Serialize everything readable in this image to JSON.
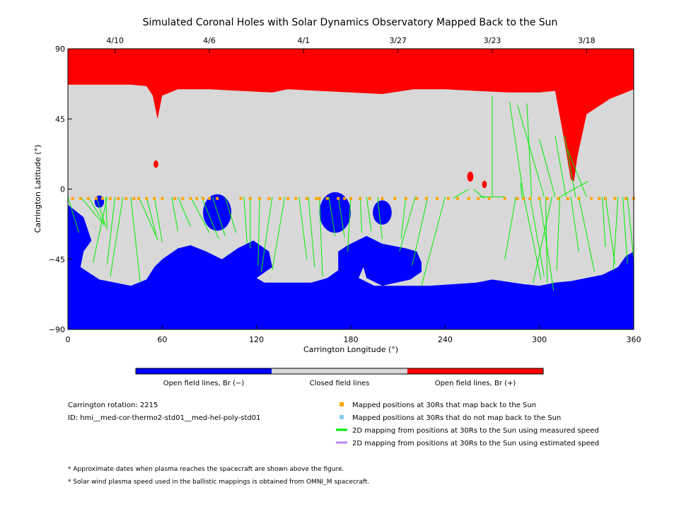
{
  "chart_data": {
    "type": "map",
    "title": "Simulated Coronal Holes with Solar Dynamics Observatory Mapped Back to the Sun",
    "xlabel": "Carrington Longitude (°)",
    "ylabel": "Carrington Latitude (°)",
    "xlim": [
      0,
      360
    ],
    "ylim": [
      -90,
      90
    ],
    "x_ticks": [
      0,
      60,
      120,
      180,
      240,
      300,
      360
    ],
    "y_ticks": [
      {
        "value": 90,
        "label": "90"
      },
      {
        "value": 45,
        "label": "45"
      },
      {
        "value": 0,
        "label": "0"
      },
      {
        "value": -45,
        "label": "−45"
      },
      {
        "value": -90,
        "label": "−90"
      }
    ],
    "top_date_ticks": [
      {
        "lon": 30,
        "label": "4/10"
      },
      {
        "lon": 90,
        "label": "4/6"
      },
      {
        "lon": 150,
        "label": "4/1"
      },
      {
        "lon": 210,
        "label": "3/27"
      },
      {
        "lon": 270,
        "label": "3/23"
      },
      {
        "lon": 330,
        "label": "3/18"
      }
    ],
    "colors": {
      "open_negative": "#0000ff",
      "closed": "#d8d8d8",
      "open_positive": "#ff0000",
      "mapped_point": "#ffa500",
      "unmapped_point": "#87ceeb",
      "measured_speed_line": "#00ee00",
      "estimated_speed_line": "#bb88ee"
    },
    "regions": {
      "positive_boundary": [
        [
          0,
          67
        ],
        [
          20,
          67
        ],
        [
          40,
          67
        ],
        [
          50,
          66
        ],
        [
          54,
          60
        ],
        [
          57,
          45
        ],
        [
          60,
          60
        ],
        [
          70,
          64
        ],
        [
          90,
          64
        ],
        [
          110,
          63
        ],
        [
          130,
          62
        ],
        [
          140,
          64
        ],
        [
          160,
          63
        ],
        [
          180,
          62
        ],
        [
          200,
          61
        ],
        [
          220,
          64
        ],
        [
          240,
          64
        ],
        [
          260,
          63
        ],
        [
          280,
          62
        ],
        [
          300,
          62
        ],
        [
          310,
          63
        ],
        [
          312,
          52
        ],
        [
          316,
          30
        ],
        [
          320,
          6
        ],
        [
          322,
          5
        ],
        [
          324,
          20
        ],
        [
          330,
          48
        ],
        [
          345,
          58
        ],
        [
          360,
          64
        ]
      ],
      "negative_boundary": [
        [
          0,
          -10
        ],
        [
          10,
          -18
        ],
        [
          15,
          -33
        ],
        [
          10,
          -40
        ],
        [
          8,
          -50
        ],
        [
          20,
          -58
        ],
        [
          30,
          -60
        ],
        [
          40,
          -62
        ],
        [
          50,
          -58
        ],
        [
          55,
          -50
        ],
        [
          60,
          -45
        ],
        [
          70,
          -38
        ],
        [
          78,
          -36
        ],
        [
          88,
          -40
        ],
        [
          98,
          -45
        ],
        [
          108,
          -38
        ],
        [
          118,
          -33
        ],
        [
          128,
          -40
        ],
        [
          130,
          -50
        ],
        [
          120,
          -57
        ],
        [
          125,
          -60
        ],
        [
          140,
          -60
        ],
        [
          155,
          -60
        ],
        [
          165,
          -57
        ],
        [
          172,
          -52
        ],
        [
          172,
          -40
        ],
        [
          178,
          -36
        ],
        [
          190,
          -30
        ],
        [
          200,
          -35
        ],
        [
          215,
          -38
        ],
        [
          222,
          -40
        ],
        [
          225,
          -47
        ],
        [
          225,
          -53
        ],
        [
          218,
          -58
        ],
        [
          200,
          -62
        ],
        [
          190,
          -57
        ],
        [
          188,
          -50
        ],
        [
          185,
          -57
        ],
        [
          195,
          -62
        ],
        [
          230,
          -62
        ],
        [
          260,
          -60
        ],
        [
          270,
          -58
        ],
        [
          290,
          -61
        ],
        [
          300,
          -62
        ],
        [
          310,
          -60
        ],
        [
          320,
          -59
        ],
        [
          340,
          -55
        ],
        [
          350,
          -50
        ],
        [
          355,
          -43
        ],
        [
          360,
          -40
        ]
      ],
      "positive_islands": [
        {
          "lon": 56,
          "lat": 16,
          "r": 1.5
        },
        {
          "lon": 256,
          "lat": 8,
          "r": 2
        },
        {
          "lon": 265,
          "lat": 3,
          "r": 1.5
        }
      ],
      "negative_islands": [
        {
          "lon": 20,
          "lat": -8,
          "r": 3
        },
        {
          "lon": 95,
          "lat": -15,
          "r": 9
        },
        {
          "lon": 170,
          "lat": -15,
          "r": 10
        },
        {
          "lon": 200,
          "lat": -15,
          "r": 6
        }
      ]
    },
    "mapped_points": {
      "lat": -6,
      "lons": [
        3,
        8,
        13,
        18,
        22,
        27,
        32,
        37,
        42,
        45,
        50,
        55,
        60,
        68,
        73,
        78,
        82,
        86,
        90,
        95,
        110,
        116,
        122,
        128,
        135,
        140,
        145,
        152,
        158,
        160,
        165,
        172,
        176,
        180,
        186,
        192,
        200,
        208,
        215,
        222,
        228,
        235,
        242,
        248,
        255,
        261,
        268,
        278,
        286,
        290,
        294,
        300,
        305,
        312,
        318,
        325,
        333,
        338,
        342,
        348,
        355,
        360
      ]
    },
    "mapping_lines": [
      [
        [
          0,
          -5
        ],
        [
          7,
          -28
        ]
      ],
      [
        [
          8,
          -5
        ],
        [
          23,
          -23
        ]
      ],
      [
        [
          13,
          -5
        ],
        [
          23,
          -22
        ]
      ],
      [
        [
          18,
          -5
        ],
        [
          24,
          -24
        ]
      ],
      [
        [
          24,
          -5
        ],
        [
          25,
          -26
        ]
      ],
      [
        [
          25,
          -5
        ],
        [
          16,
          -47
        ]
      ],
      [
        [
          30,
          -5
        ],
        [
          25,
          -48
        ]
      ],
      [
        [
          35,
          -5
        ],
        [
          27,
          -56
        ]
      ],
      [
        [
          40,
          -5
        ],
        [
          46,
          -60
        ]
      ],
      [
        [
          45,
          -5
        ],
        [
          57,
          -32
        ]
      ],
      [
        [
          50,
          -5
        ],
        [
          57,
          -33
        ]
      ],
      [
        [
          55,
          -5
        ],
        [
          60,
          -34
        ]
      ],
      [
        [
          66,
          -5
        ],
        [
          70,
          -27
        ]
      ],
      [
        [
          70,
          -5
        ],
        [
          78,
          -24
        ]
      ],
      [
        [
          78,
          -5
        ],
        [
          90,
          -28
        ]
      ],
      [
        [
          85,
          -5
        ],
        [
          96,
          -32
        ]
      ],
      [
        [
          92,
          -5
        ],
        [
          100,
          -30
        ]
      ],
      [
        [
          100,
          -5
        ],
        [
          107,
          -28
        ]
      ],
      [
        [
          112,
          -5
        ],
        [
          114,
          -35
        ]
      ],
      [
        [
          116,
          -5
        ],
        [
          116,
          -38
        ]
      ],
      [
        [
          122,
          -5
        ],
        [
          121,
          -49
        ]
      ],
      [
        [
          130,
          -5
        ],
        [
          123,
          -53
        ]
      ],
      [
        [
          138,
          -5
        ],
        [
          130,
          -52
        ]
      ],
      [
        [
          147,
          -5
        ],
        [
          152,
          -45
        ]
      ],
      [
        [
          153,
          -5
        ],
        [
          157,
          -50
        ]
      ],
      [
        [
          160,
          -5
        ],
        [
          162,
          -56
        ]
      ],
      [
        [
          166,
          -5
        ],
        [
          170,
          -30
        ]
      ],
      [
        [
          172,
          -5
        ],
        [
          176,
          -31
        ]
      ],
      [
        [
          180,
          -5
        ],
        [
          178,
          -40
        ]
      ],
      [
        [
          186,
          -5
        ],
        [
          187,
          -28
        ]
      ],
      [
        [
          190,
          -5
        ],
        [
          193,
          -27
        ]
      ],
      [
        [
          197,
          -5
        ],
        [
          200,
          -32
        ]
      ],
      [
        [
          215,
          -5
        ],
        [
          212,
          -32
        ]
      ],
      [
        [
          221,
          -5
        ],
        [
          211,
          -40
        ]
      ],
      [
        [
          229,
          -5
        ],
        [
          219,
          -49
        ]
      ],
      [
        [
          240,
          -5
        ],
        [
          225,
          -62
        ]
      ],
      [
        [
          255,
          0
        ],
        [
          245,
          -6
        ]
      ],
      [
        [
          258,
          0
        ],
        [
          265,
          -6
        ]
      ],
      [
        [
          262,
          -5
        ],
        [
          278,
          -5
        ]
      ],
      [
        [
          285,
          -5
        ],
        [
          278,
          -45
        ]
      ],
      [
        [
          288,
          4
        ],
        [
          289,
          -6
        ]
      ],
      [
        [
          290,
          -5
        ],
        [
          301,
          -58
        ]
      ],
      [
        [
          294,
          -5
        ],
        [
          303,
          -56
        ]
      ],
      [
        [
          300,
          -5
        ],
        [
          309,
          -65
        ]
      ],
      [
        [
          304,
          -5
        ],
        [
          305,
          -60
        ]
      ],
      [
        [
          308,
          -5
        ],
        [
          296,
          -60
        ]
      ],
      [
        [
          313,
          -5
        ],
        [
          311,
          -52
        ]
      ],
      [
        [
          320,
          -5
        ],
        [
          325,
          -40
        ]
      ],
      [
        [
          325,
          -5
        ],
        [
          335,
          -53
        ]
      ],
      [
        [
          340,
          -5
        ],
        [
          342,
          -37
        ]
      ],
      [
        [
          342,
          -5
        ],
        [
          348,
          -48
        ]
      ],
      [
        [
          350,
          -5
        ],
        [
          347,
          -52
        ]
      ],
      [
        [
          353,
          -5
        ],
        [
          356,
          -48
        ]
      ],
      [
        [
          356,
          -5
        ],
        [
          360,
          -45
        ]
      ],
      [
        [
          270,
          -5
        ],
        [
          270,
          60
        ]
      ],
      [
        [
          290,
          -5
        ],
        [
          281,
          56
        ]
      ],
      [
        [
          295,
          -5
        ],
        [
          292,
          55
        ]
      ],
      [
        [
          303,
          -5
        ],
        [
          286,
          54
        ]
      ],
      [
        [
          310,
          -5
        ],
        [
          300,
          32
        ]
      ],
      [
        [
          317,
          -5
        ],
        [
          310,
          34
        ]
      ],
      [
        [
          323,
          -5
        ],
        [
          316,
          34
        ]
      ],
      [
        [
          330,
          -5
        ],
        [
          318,
          25
        ]
      ],
      [
        [
          313,
          -5
        ],
        [
          331,
          5
        ]
      ]
    ],
    "colorbar": [
      {
        "label": "Open field lines, Br (−)",
        "color": "#0000ff"
      },
      {
        "label": "Closed field lines",
        "color": "#d8d8d8"
      },
      {
        "label": "Open field lines, Br (+)",
        "color": "#ff0000"
      }
    ],
    "info": {
      "rotation": "Carrington rotation: 2215",
      "id": "ID: hmi__med-cor-thermo2-std01__med-hel-poly-std01"
    },
    "legend": [
      {
        "label": "Mapped positions at 30Rs that map back to the Sun",
        "kind": "square",
        "color": "#ffa500"
      },
      {
        "label": "Mapped positions at 30Rs that do not map back to the Sun",
        "kind": "square",
        "color": "#87ceeb"
      },
      {
        "label": "2D mapping from positions at 30Rs to the Sun using measured speed",
        "kind": "line",
        "color": "#00ee00"
      },
      {
        "label": "2D mapping from positions at 30Rs to the Sun using estimated speed",
        "kind": "line",
        "color": "#bb88ee"
      }
    ],
    "notes": [
      "* Approximate dates when plasma reaches the spacecraft are shown above the figure.",
      "* Solar wind plasma speed used in the ballistic mappings is obtained from OMNI_M spacecraft."
    ]
  }
}
